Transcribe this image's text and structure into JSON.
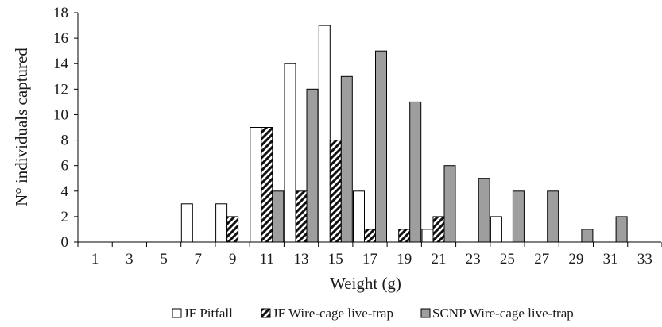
{
  "chart_data": {
    "type": "bar",
    "categories": [
      "1",
      "3",
      "5",
      "7",
      "9",
      "11",
      "13",
      "15",
      "17",
      "19",
      "21",
      "23",
      "25",
      "27",
      "29",
      "31",
      "33"
    ],
    "series": [
      {
        "name": "JF Pitfall",
        "fill": "#ffffff",
        "pattern": "none",
        "values": [
          0,
          0,
          0,
          3,
          3,
          9,
          14,
          17,
          4,
          0,
          1,
          0,
          2,
          0,
          0,
          0,
          0
        ]
      },
      {
        "name": "JF Wire-cage live-trap",
        "fill": "#111111",
        "pattern": "diagonal-stripes",
        "values": [
          0,
          0,
          0,
          0,
          2,
          9,
          4,
          8,
          1,
          1,
          2,
          0,
          0,
          0,
          0,
          0,
          0
        ]
      },
      {
        "name": "SCNP Wire-cage live-trap",
        "fill": "#9e9e9e",
        "pattern": "none",
        "values": [
          0,
          0,
          0,
          0,
          0,
          4,
          12,
          13,
          15,
          11,
          6,
          5,
          4,
          4,
          1,
          2,
          0
        ]
      }
    ],
    "xlabel": "Weight (g)",
    "ylabel": "N° individuals captured",
    "ylim": [
      0,
      18
    ],
    "yticks": [
      0,
      2,
      4,
      6,
      8,
      10,
      12,
      14,
      16,
      18
    ],
    "grid": false,
    "legend_position": "bottom"
  }
}
